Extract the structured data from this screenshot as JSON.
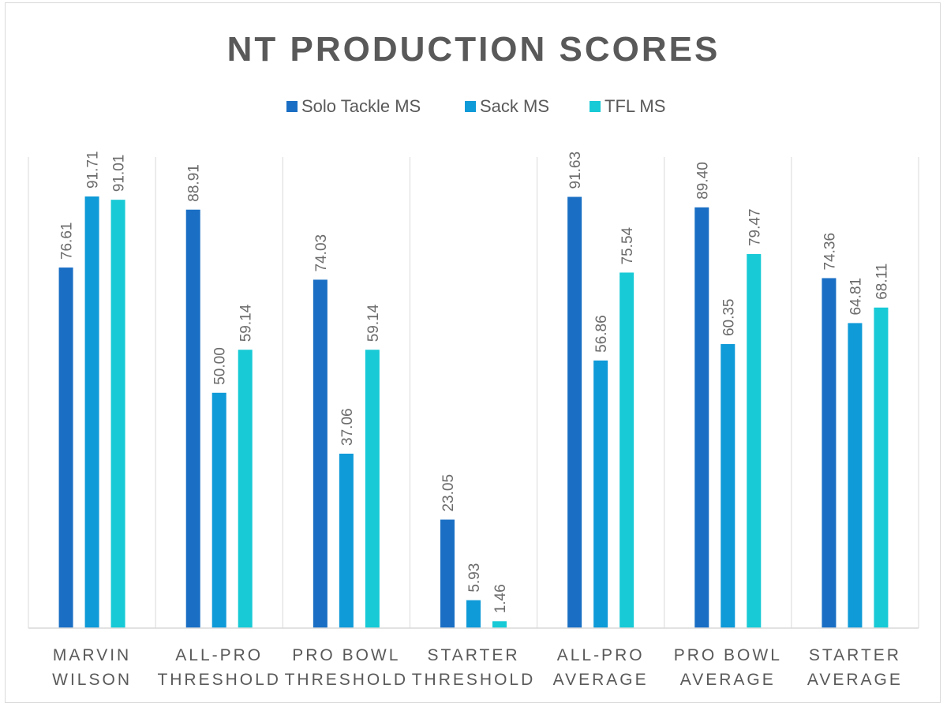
{
  "chart_data": {
    "type": "bar",
    "title": "NT PRODUCTION SCORES",
    "categories": [
      [
        "MARVIN",
        "WILSON"
      ],
      [
        "ALL-PRO",
        "THRESHOLD"
      ],
      [
        "PRO BOWL",
        "THRESHOLD"
      ],
      [
        "STARTER",
        "THRESHOLD"
      ],
      [
        "ALL-PRO",
        "AVERAGE"
      ],
      [
        "PRO BOWL",
        "AVERAGE"
      ],
      [
        "STARTER",
        "AVERAGE"
      ]
    ],
    "series": [
      {
        "name": "Solo Tackle MS",
        "color": "#1a6fc4",
        "values": [
          76.61,
          88.91,
          74.03,
          23.05,
          91.63,
          89.4,
          74.36
        ],
        "labels": [
          "76.61",
          "88.91",
          "74.03",
          "23.05",
          "91.63",
          "89.40",
          "74.36"
        ]
      },
      {
        "name": "Sack MS",
        "color": "#0f9ad8",
        "values": [
          91.71,
          50.0,
          37.06,
          5.93,
          56.86,
          60.35,
          64.81
        ],
        "labels": [
          "91.71",
          "50.00",
          "37.06",
          "5.93",
          "56.86",
          "60.35",
          "64.81"
        ]
      },
      {
        "name": "TFL MS",
        "color": "#17cad6",
        "values": [
          91.01,
          59.14,
          59.14,
          1.46,
          75.54,
          79.47,
          68.11
        ],
        "labels": [
          "91.01",
          "59.14",
          "59.14",
          "1.46",
          "75.54",
          "79.47",
          "68.11"
        ]
      }
    ],
    "ylim": [
      0,
      100
    ],
    "xlabel": "",
    "ylabel": "",
    "grid": false,
    "legend": "top-center"
  }
}
